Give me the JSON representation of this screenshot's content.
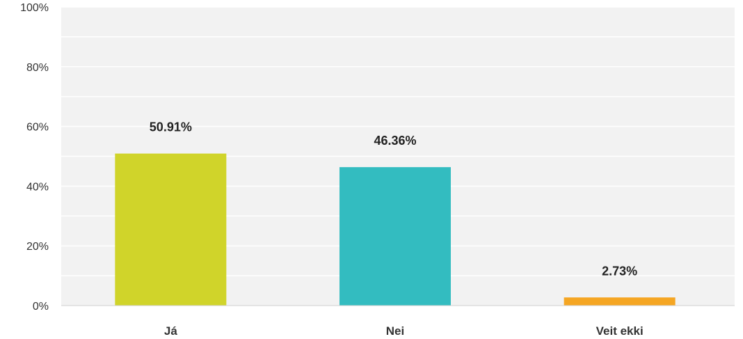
{
  "chart_data": {
    "type": "bar",
    "categories": [
      "Já",
      "Nei",
      "Veit ekki"
    ],
    "values": [
      50.91,
      46.36,
      2.73
    ],
    "value_labels": [
      "50.91%",
      "46.36%",
      "2.73%"
    ],
    "colors": [
      "#d0d42a",
      "#33bcc0",
      "#f5a623"
    ],
    "ylim": [
      0,
      100
    ],
    "yticks": [
      0,
      20,
      40,
      60,
      80,
      100
    ],
    "ytick_labels": [
      "0%",
      "20%",
      "40%",
      "60%",
      "80%",
      "100%"
    ],
    "grid": true,
    "background": "#f2f2f2",
    "grid_color": "#ffffff",
    "title": "",
    "xlabel": "",
    "ylabel": ""
  }
}
